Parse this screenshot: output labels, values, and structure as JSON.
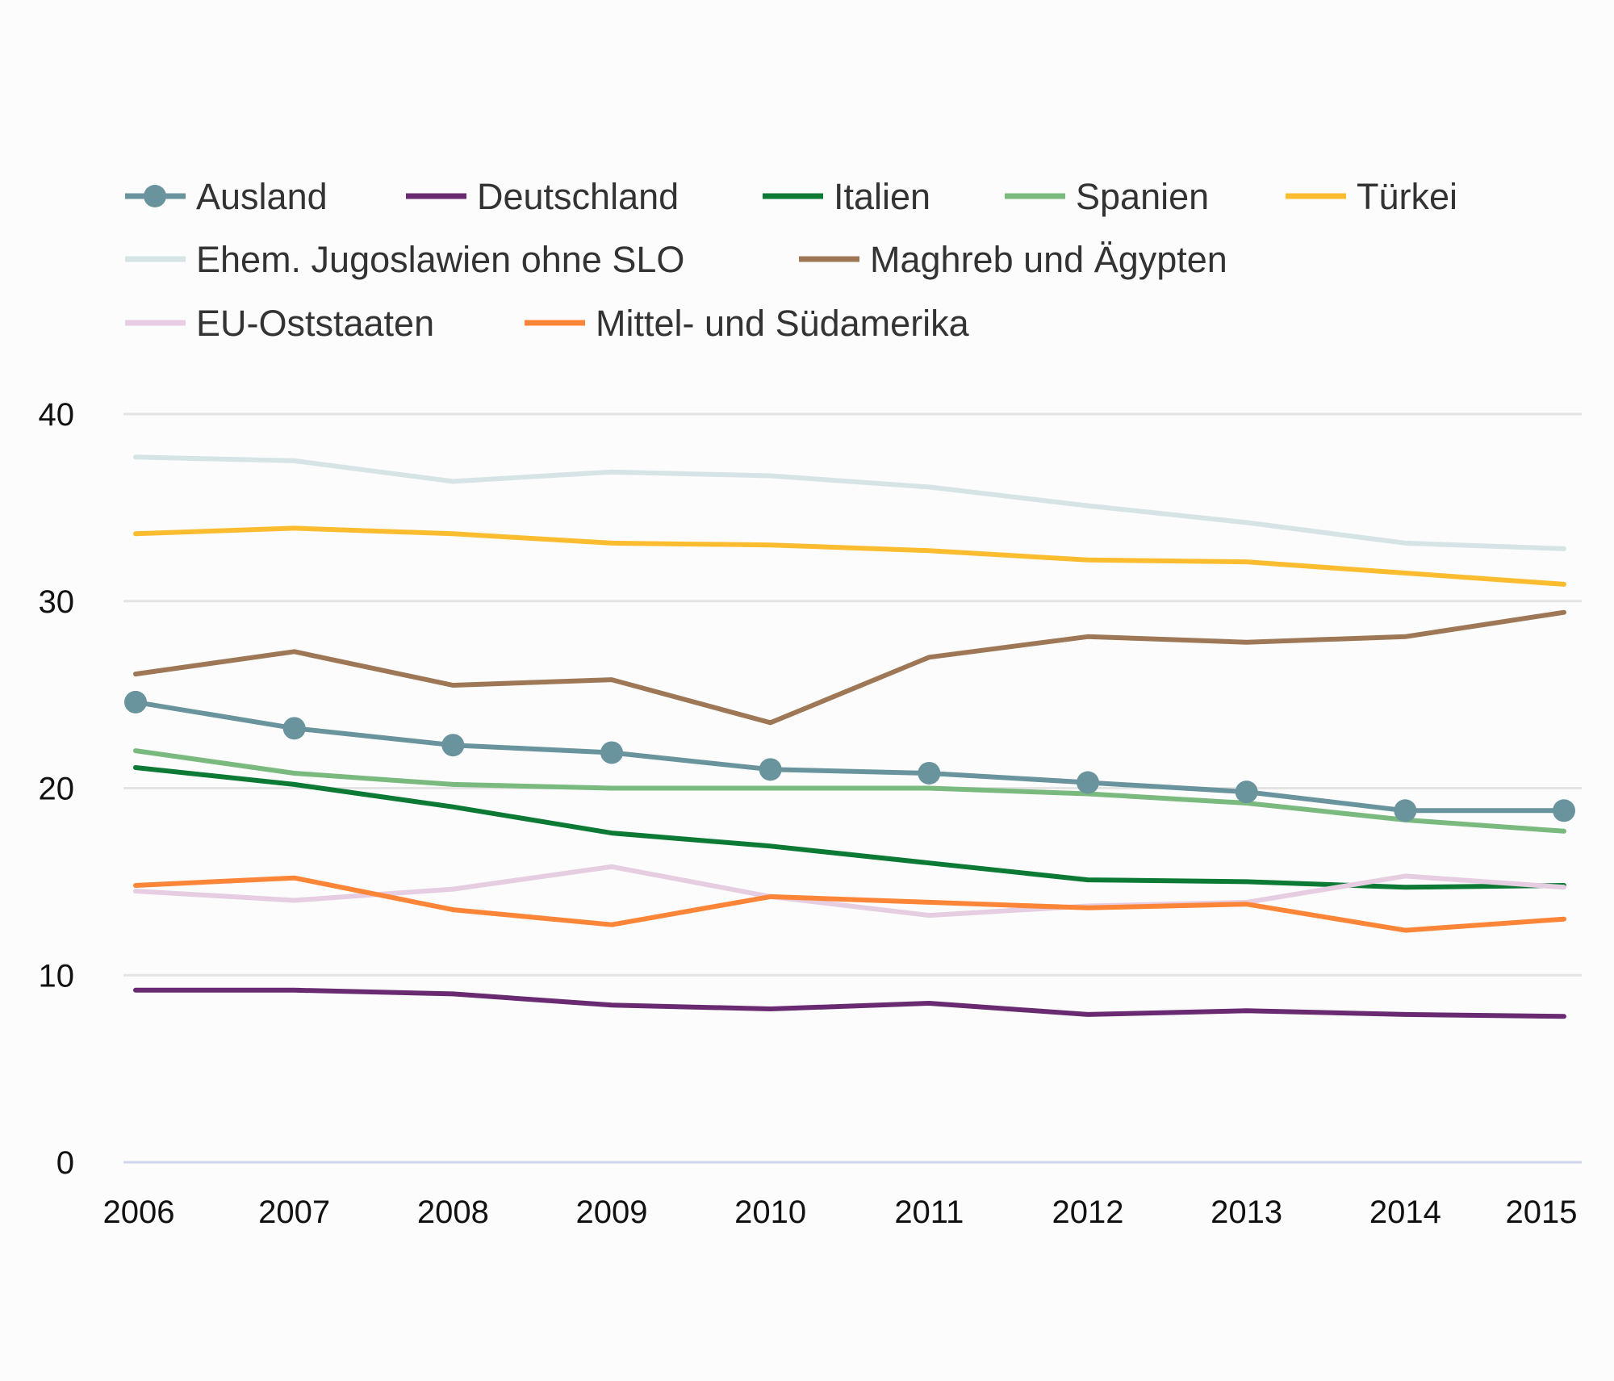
{
  "chart_data": {
    "type": "line",
    "title": "",
    "xlabel": "",
    "ylabel": "",
    "x": [
      "2006",
      "2007",
      "2008",
      "2009",
      "2010",
      "2011",
      "2012",
      "2013",
      "2014",
      "2015"
    ],
    "ylim": [
      0,
      40
    ],
    "yticks": [
      0,
      10,
      20,
      30,
      40
    ],
    "grid": true,
    "legend_position": "top",
    "series": [
      {
        "name": "Ausland",
        "color": "#6a949d",
        "markers": true,
        "values": [
          24.6,
          23.2,
          22.3,
          21.9,
          21.0,
          20.8,
          20.3,
          19.8,
          18.8,
          18.8
        ]
      },
      {
        "name": "Deutschland",
        "color": "#6a2a72",
        "markers": false,
        "values": [
          9.2,
          9.2,
          9.0,
          8.4,
          8.2,
          8.5,
          7.9,
          8.1,
          7.9,
          7.8
        ]
      },
      {
        "name": "Italien",
        "color": "#0c7a34",
        "markers": false,
        "values": [
          21.1,
          20.2,
          19.0,
          17.6,
          16.9,
          16.0,
          15.1,
          15.0,
          14.7,
          14.8
        ]
      },
      {
        "name": "Spanien",
        "color": "#7aba7e",
        "markers": false,
        "values": [
          22.0,
          20.8,
          20.2,
          20.0,
          20.0,
          20.0,
          19.7,
          19.2,
          18.3,
          17.7
        ]
      },
      {
        "name": "Türkei",
        "color": "#fbbd2f",
        "markers": false,
        "values": [
          33.6,
          33.9,
          33.6,
          33.1,
          33.0,
          32.7,
          32.2,
          32.1,
          31.5,
          30.9
        ]
      },
      {
        "name": "Ehem. Jugoslawien ohne SLO",
        "color": "#d6e4e6",
        "markers": false,
        "values": [
          37.7,
          37.5,
          36.4,
          36.9,
          36.7,
          36.1,
          35.1,
          34.2,
          33.1,
          32.8
        ]
      },
      {
        "name": "Maghreb und Ägypten",
        "color": "#9e7856",
        "markers": false,
        "values": [
          26.1,
          27.3,
          25.5,
          25.8,
          23.5,
          27.0,
          28.1,
          27.8,
          28.1,
          29.4
        ]
      },
      {
        "name": "EU-Oststaaten",
        "color": "#e6cde2",
        "markers": false,
        "values": [
          14.5,
          14.0,
          14.6,
          15.8,
          14.2,
          13.2,
          13.7,
          13.9,
          15.3,
          14.7
        ]
      },
      {
        "name": "Mittel- und Südamerika",
        "color": "#fd8537",
        "markers": false,
        "values": [
          14.8,
          15.2,
          13.5,
          12.7,
          14.2,
          13.9,
          13.6,
          13.8,
          12.4,
          13.0
        ]
      }
    ]
  }
}
